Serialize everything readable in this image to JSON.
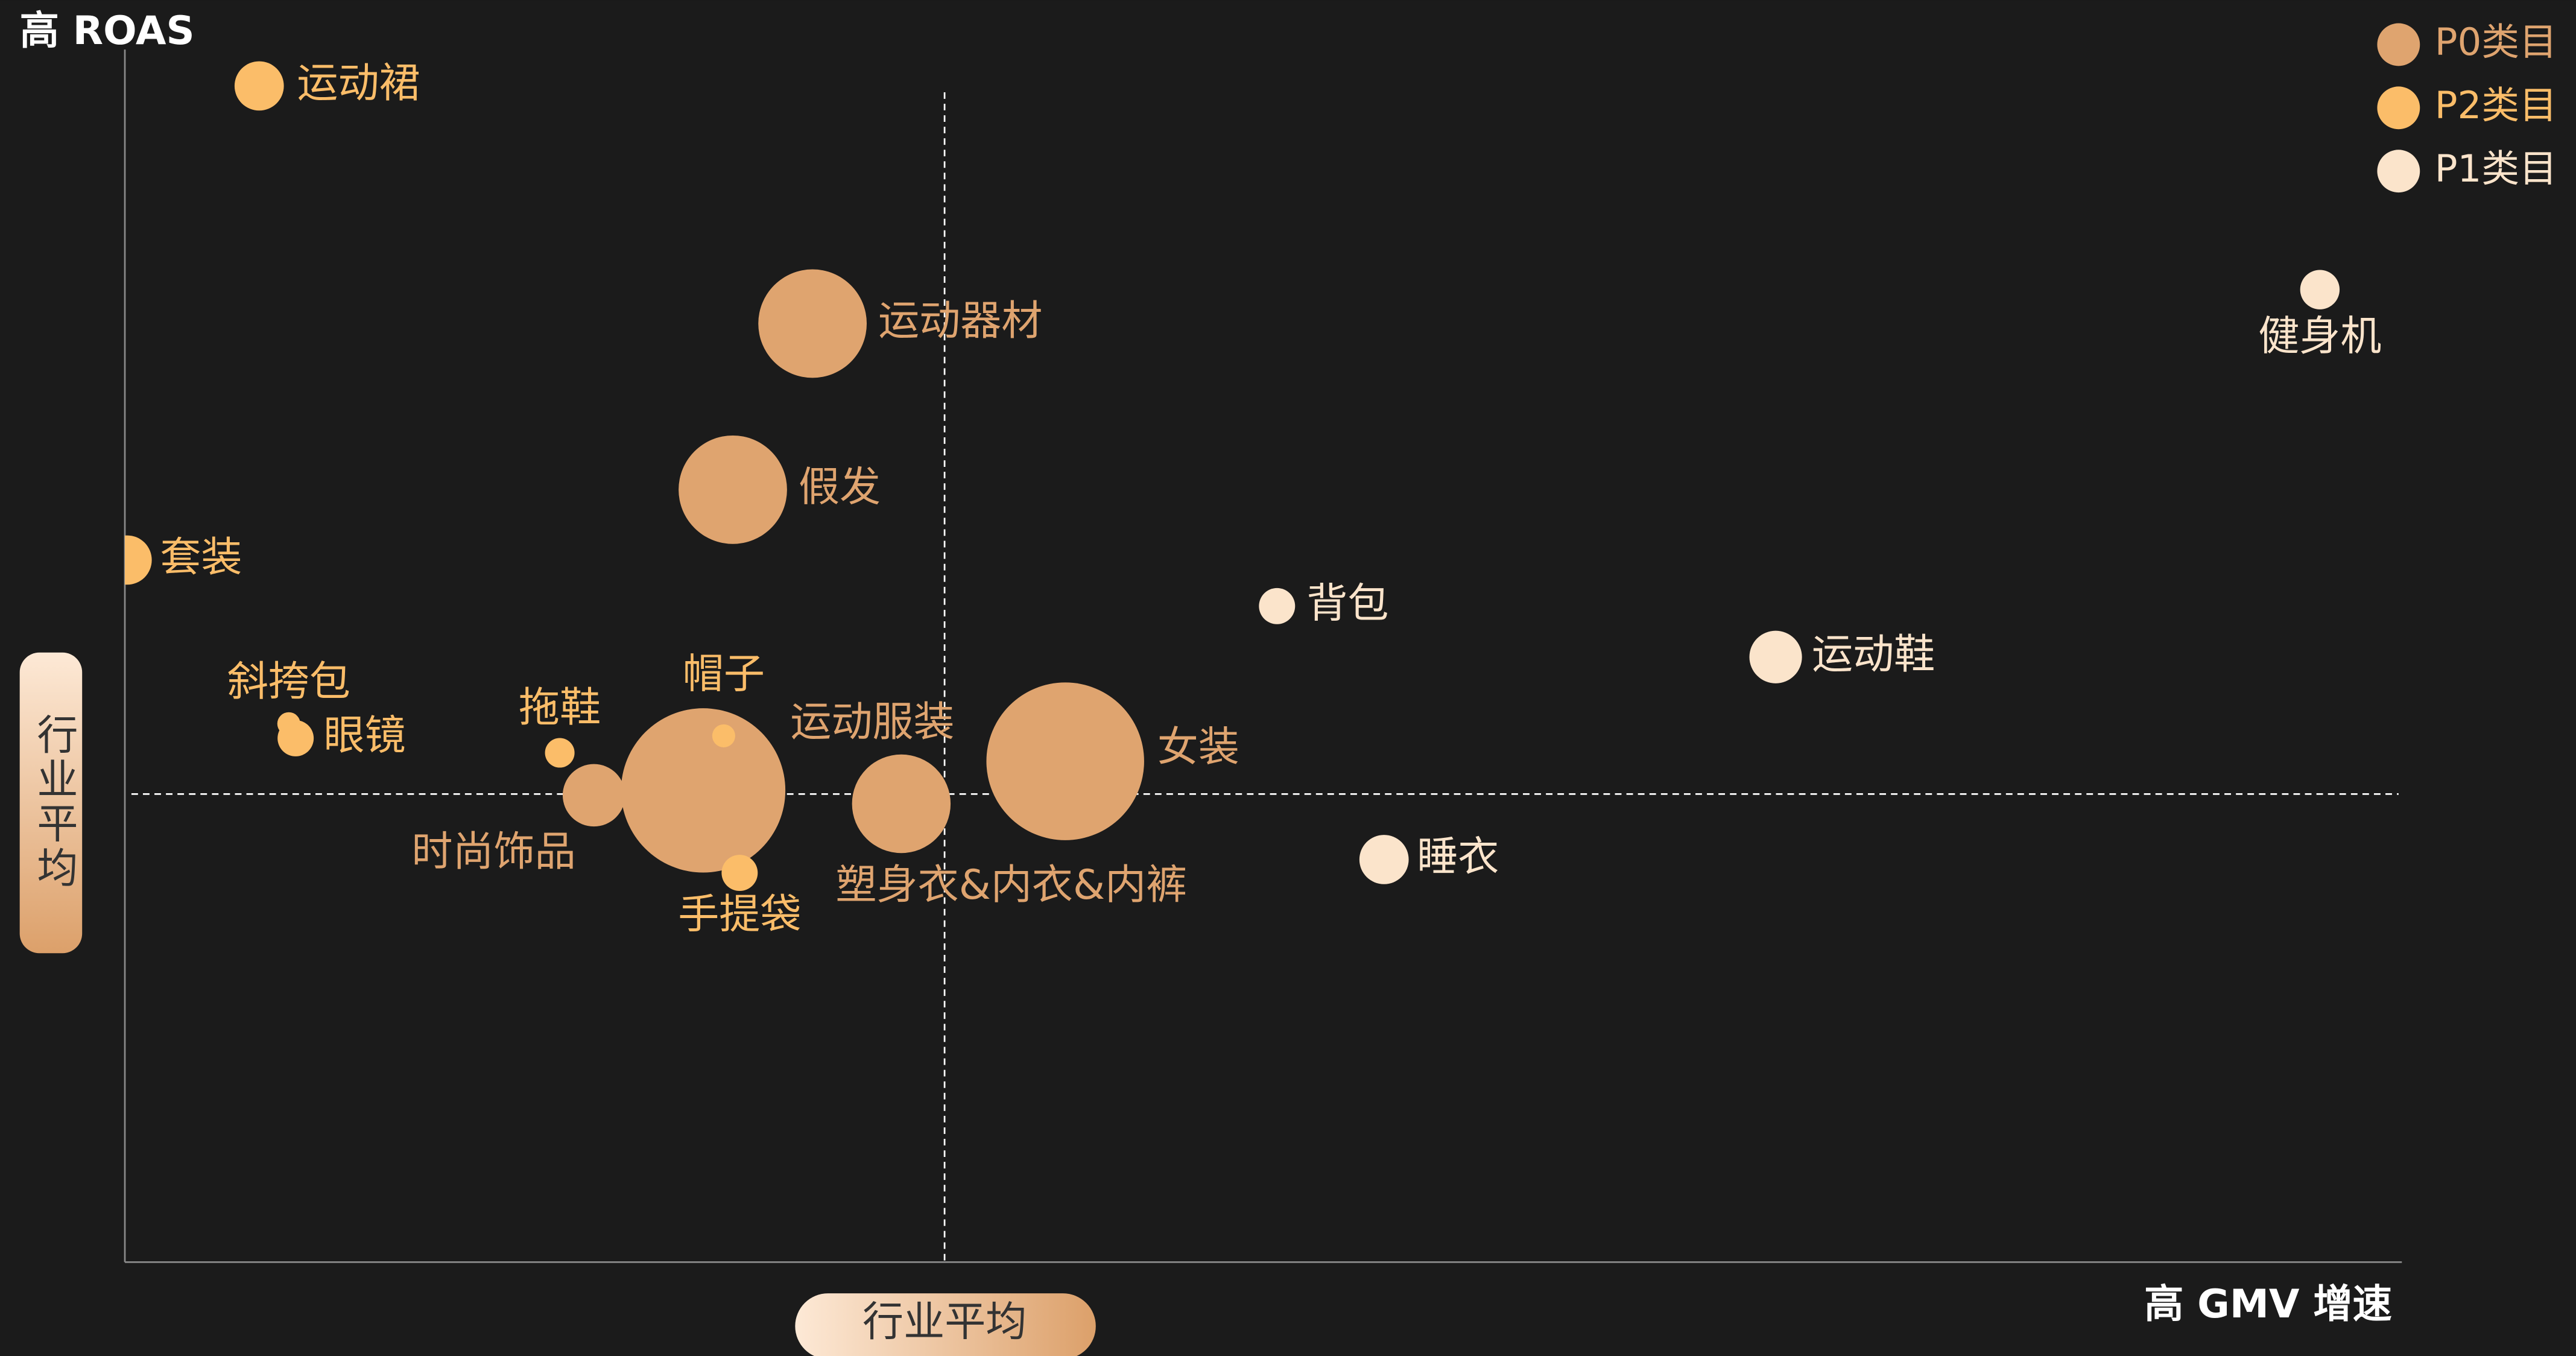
{
  "chart_data": {
    "type": "bubble",
    "y_axis_title": "高 ROAS",
    "x_axis_title": "高 GMV 增速",
    "xlim": [
      0,
      100
    ],
    "ylim": [
      0,
      100
    ],
    "reference_lines": {
      "x": 36.0,
      "y": 38.6,
      "label": "行业平均"
    },
    "legend": "top-right",
    "series": [
      {
        "name": "P0类目",
        "color": "#dfa46f",
        "labels": [
          "运动器材",
          "假发",
          "时尚饰品",
          "运动服装",
          "塑身衣&内衣&内裤",
          "女装"
        ],
        "x": [
          30.2,
          26.7,
          20.6,
          25.4,
          34.1,
          41.3
        ],
        "y": [
          77.4,
          63.7,
          38.5,
          38.9,
          37.8,
          41.3
        ],
        "sizes": [
          33,
          33,
          19,
          50,
          30,
          48
        ]
      },
      {
        "name": "P2类目",
        "color": "#fbbd69",
        "labels": [
          "运动裙",
          "套装",
          "斜挎包",
          "眼镜",
          "拖鞋",
          "帽子",
          "手提袋"
        ],
        "x": [
          5.9,
          0.1,
          7.2,
          7.5,
          19.1,
          26.3,
          27.0
        ],
        "y": [
          97.0,
          57.9,
          44.4,
          43.2,
          42.0,
          43.4,
          32.1
        ],
        "sizes": [
          15,
          15,
          7,
          11,
          9,
          7,
          11
        ]
      },
      {
        "name": "P1类目",
        "color": "#fbe4cb",
        "labels": [
          "背包",
          "运动鞋",
          "健身机",
          "睡衣"
        ],
        "x": [
          50.6,
          72.5,
          96.4,
          55.3
        ],
        "y": [
          54.1,
          49.9,
          80.2,
          33.2
        ],
        "sizes": [
          11,
          16,
          12,
          15
        ]
      }
    ]
  }
}
